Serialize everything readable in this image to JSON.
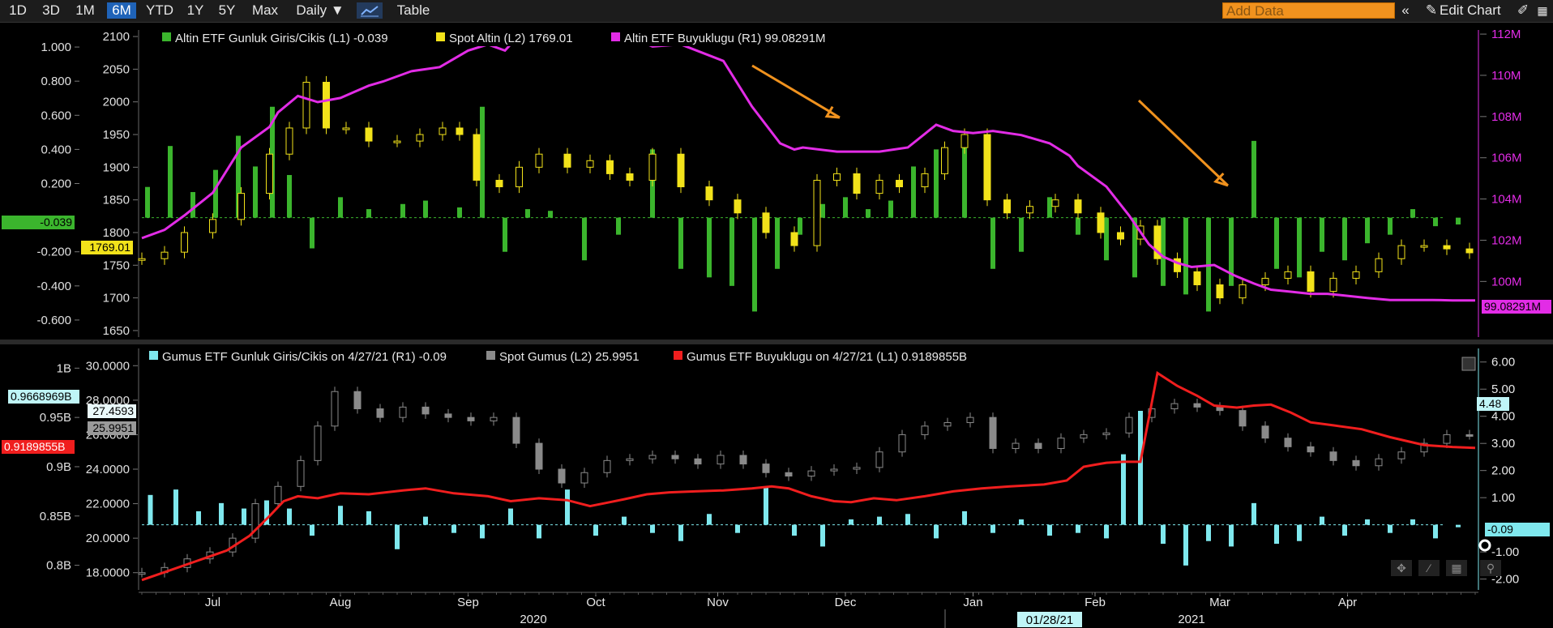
{
  "toolbar": {
    "ranges": [
      "1D",
      "3D",
      "1M",
      "6M",
      "YTD",
      "1Y",
      "5Y",
      "Max"
    ],
    "active_range": "6M",
    "interval": "Daily ▼",
    "table_label": "Table",
    "add_data_placeholder": "Add Data",
    "collapse_icon": "«",
    "edit_chart_label": "Edit Chart",
    "pencil_icon": "✎",
    "right_icon": "✐"
  },
  "colors": {
    "green": "#3bb52d",
    "yellow": "#f2e21a",
    "magenta": "#e22ce6",
    "cyan": "#7fe8ee",
    "gray": "#8a8a8a",
    "red": "#f01e1e",
    "orange": "#f0921e"
  },
  "chart_data": [
    {
      "type": "line",
      "title": "",
      "legend_placement": "top-left",
      "legend": [
        {
          "text": "Altin ETF Gunluk Giris/Cikis (L1) -0.039",
          "color": "#3bb52d"
        },
        {
          "text": "Spot Altin (L2) 1769.01",
          "color": "#f2e21a"
        },
        {
          "text": "Altin ETF Buyuklugu (R1) 99.08291M",
          "color": "#e22ce6"
        }
      ],
      "axes": {
        "L1": {
          "ticks": [
            "1.000",
            "0.800",
            "0.600",
            "0.400",
            "0.200",
            "-0.200",
            "-0.400",
            "-0.600"
          ],
          "range": [
            -0.7,
            1.1
          ]
        },
        "L2": {
          "ticks": [
            "2100",
            "2050",
            "2000",
            "1950",
            "1900",
            "1850",
            "1800",
            "1750",
            "1700",
            "1650"
          ],
          "range": [
            1640,
            2110
          ]
        },
        "R1": {
          "ticks": [
            "112M",
            "110M",
            "108M",
            "106M",
            "104M",
            "102M",
            "100M"
          ],
          "range": [
            97.3,
            112.2
          ]
        }
      },
      "last_value_tags": {
        "L1": "-0.039",
        "L2": "1769.01",
        "R1": "99.08291M"
      },
      "series": [
        {
          "name": "Altin ETF Buyuklugu",
          "axis": "R1",
          "style": "line",
          "color": "#e22ce6",
          "x": [
            0,
            8,
            15,
            25,
            35,
            45,
            48,
            55,
            62,
            70,
            75,
            80,
            85,
            95,
            105,
            115,
            122,
            128,
            132,
            140,
            150,
            158,
            163,
            168,
            175,
            180,
            190,
            205,
            215,
            225,
            230,
            233,
            245,
            260,
            270,
            280,
            286,
            293,
            300,
            310,
            320,
            327,
            330,
            340,
            348,
            355,
            360,
            365,
            370,
            378,
            385,
            392,
            398,
            405,
            412,
            418,
            425,
            432,
            440,
            448,
            455,
            462,
            470
          ],
          "y": [
            102.1,
            102.5,
            103.2,
            104.3,
            106.5,
            107.5,
            108.2,
            109.0,
            108.7,
            108.9,
            109.2,
            109.5,
            109.7,
            110.2,
            110.4,
            111.2,
            111.5,
            111.2,
            111.8,
            112.0,
            112.1,
            112.0,
            111.9,
            111.8,
            111.7,
            111.4,
            111.5,
            110.7,
            108.5,
            106.7,
            106.4,
            106.5,
            106.3,
            106.3,
            106.5,
            107.6,
            107.3,
            107.2,
            107.3,
            107.1,
            106.7,
            106.1,
            105.6,
            104.6,
            103.2,
            101.8,
            101.2,
            100.9,
            100.7,
            100.8,
            100.3,
            99.9,
            99.6,
            99.5,
            99.4,
            99.4,
            99.3,
            99.2,
            99.1,
            99.1,
            99.1,
            99.08,
            99.08
          ]
        },
        {
          "name": "Spot Altin",
          "axis": "L2",
          "style": "candlestick",
          "color": "#f2e21a",
          "x": [
            0,
            8,
            15,
            25,
            35,
            45,
            52,
            58,
            65,
            72,
            80,
            90,
            98,
            106,
            112,
            118,
            126,
            133,
            140,
            150,
            158,
            165,
            172,
            180,
            190,
            200,
            210,
            220,
            230,
            238,
            245,
            252,
            260,
            267,
            276,
            283,
            290,
            298,
            305,
            313,
            322,
            330,
            338,
            345,
            352,
            358,
            365,
            372,
            380,
            388,
            396,
            404,
            412,
            420,
            428,
            436,
            444,
            452,
            460,
            468
          ],
          "y": [
            1760,
            1770,
            1800,
            1820,
            1860,
            1920,
            1960,
            2030,
            1960,
            1960,
            1940,
            1940,
            1950,
            1960,
            1950,
            1880,
            1870,
            1900,
            1920,
            1900,
            1910,
            1890,
            1880,
            1920,
            1870,
            1850,
            1830,
            1800,
            1780,
            1880,
            1890,
            1860,
            1880,
            1870,
            1890,
            1930,
            1950,
            1850,
            1830,
            1840,
            1850,
            1830,
            1800,
            1790,
            1810,
            1760,
            1740,
            1720,
            1700,
            1720,
            1730,
            1740,
            1710,
            1730,
            1740,
            1760,
            1780,
            1780,
            1775,
            1769
          ]
        },
        {
          "name": "Altin ETF Gunluk Giris/Cikis",
          "axis": "L1",
          "style": "bar",
          "color": "#3bb52d",
          "x": [
            2,
            10,
            18,
            26,
            34,
            40,
            46,
            52,
            60,
            70,
            80,
            92,
            100,
            112,
            120,
            128,
            136,
            144,
            156,
            168,
            180,
            190,
            200,
            208,
            216,
            224,
            232,
            240,
            248,
            256,
            264,
            272,
            280,
            290,
            300,
            310,
            320,
            330,
            340,
            350,
            360,
            368,
            376,
            384,
            392,
            400,
            408,
            416,
            424,
            432,
            440,
            448,
            456,
            464
          ],
          "y": [
            0.18,
            0.42,
            0.15,
            0.28,
            0.48,
            0.3,
            0.65,
            0.25,
            -0.18,
            0.12,
            0.05,
            0.08,
            0.1,
            0.06,
            0.65,
            -0.2,
            0.05,
            0.04,
            -0.25,
            -0.1,
            0.4,
            -0.3,
            -0.35,
            -0.4,
            -0.55,
            -0.3,
            -0.1,
            0.08,
            0.12,
            0.05,
            0.1,
            0.3,
            0.4,
            0.42,
            -0.3,
            -0.2,
            0.12,
            -0.1,
            -0.25,
            -0.35,
            -0.4,
            -0.45,
            -0.55,
            -0.4,
            0.45,
            -0.3,
            -0.35,
            -0.2,
            -0.25,
            -0.15,
            -0.1,
            0.05,
            -0.05,
            -0.04
          ]
        }
      ],
      "x_domain": [
        0,
        470
      ]
    },
    {
      "type": "line",
      "title": "",
      "legend_placement": "top-left",
      "legend": [
        {
          "text": "Gumus ETF Gunluk Giris/Cikis on 4/27/21 (R1) -0.09",
          "color": "#7fe8ee"
        },
        {
          "text": "Spot Gumus (L2) 25.9951",
          "color": "#8a8a8a"
        },
        {
          "text": "Gumus ETF Buyuklugu on 4/27/21 (L1) 0.9189855B",
          "color": "#f01e1e"
        }
      ],
      "axes": {
        "L1": {
          "ticks": [
            "1B",
            "0.95B",
            "0.9B",
            "0.85B",
            "0.8B"
          ],
          "range": [
            0.775,
            1.02
          ]
        },
        "L2": {
          "ticks": [
            "30.0000",
            "28.0000",
            "26.0000",
            "24.0000",
            "22.0000",
            "20.0000",
            "18.0000"
          ],
          "range": [
            17.0,
            31.0
          ]
        },
        "R1": {
          "ticks": [
            "6.00",
            "5.00",
            "4.00",
            "3.00",
            "2.00",
            "1.00",
            "-1.00",
            "-2.00"
          ],
          "range": [
            -2.4,
            6.5
          ]
        }
      },
      "last_value_tags": {
        "L1_a": "0.9668969B",
        "L1_b": "0.9189855B",
        "L2_a": "27.4593",
        "L2_b": "25.9951",
        "R1_a": "4.48",
        "R1_b": "-0.09"
      },
      "series": [
        {
          "name": "Gumus ETF Buyuklugu",
          "axis": "L1",
          "style": "line",
          "color": "#f01e1e",
          "x": [
            0,
            10,
            20,
            30,
            38,
            45,
            50,
            55,
            62,
            70,
            80,
            92,
            100,
            110,
            122,
            130,
            140,
            150,
            158,
            165,
            170,
            178,
            186,
            195,
            205,
            215,
            222,
            228,
            236,
            244,
            250,
            258,
            266,
            276,
            286,
            296,
            306,
            318,
            326,
            332,
            336,
            340,
            346,
            352,
            358,
            365,
            372,
            378,
            386,
            392,
            398,
            405,
            412,
            420,
            430,
            440,
            452,
            462,
            470
          ],
          "y": [
            0.785,
            0.795,
            0.805,
            0.815,
            0.83,
            0.85,
            0.865,
            0.87,
            0.868,
            0.873,
            0.872,
            0.876,
            0.878,
            0.873,
            0.87,
            0.865,
            0.868,
            0.866,
            0.86,
            0.864,
            0.867,
            0.872,
            0.874,
            0.875,
            0.876,
            0.878,
            0.88,
            0.878,
            0.87,
            0.865,
            0.864,
            0.868,
            0.866,
            0.87,
            0.875,
            0.878,
            0.88,
            0.882,
            0.886,
            0.9,
            0.902,
            0.904,
            0.905,
            0.905,
            0.995,
            0.982,
            0.972,
            0.962,
            0.96,
            0.962,
            0.963,
            0.955,
            0.945,
            0.942,
            0.938,
            0.93,
            0.922,
            0.92,
            0.919
          ]
        },
        {
          "name": "Spot Gumus",
          "axis": "L2",
          "style": "candlestick",
          "color": "#8a8a8a",
          "x": [
            0,
            8,
            16,
            24,
            32,
            40,
            48,
            56,
            62,
            68,
            76,
            84,
            92,
            100,
            108,
            116,
            124,
            132,
            140,
            148,
            156,
            164,
            172,
            180,
            188,
            196,
            204,
            212,
            220,
            228,
            236,
            244,
            252,
            260,
            268,
            276,
            284,
            292,
            300,
            308,
            316,
            324,
            332,
            340,
            348,
            356,
            364,
            372,
            380,
            388,
            396,
            404,
            412,
            420,
            428,
            436,
            444,
            452,
            460,
            468
          ],
          "y": [
            18.0,
            18.3,
            18.8,
            19.2,
            20.0,
            22.0,
            23.0,
            24.5,
            26.5,
            28.5,
            27.5,
            27.0,
            27.6,
            27.2,
            27.0,
            26.8,
            27.0,
            25.5,
            24.0,
            23.2,
            23.8,
            24.5,
            24.6,
            24.8,
            24.6,
            24.3,
            24.8,
            24.3,
            23.8,
            23.6,
            23.9,
            24.0,
            24.1,
            25.0,
            26.0,
            26.5,
            26.7,
            27.0,
            25.2,
            25.5,
            25.2,
            25.8,
            26.0,
            26.1,
            27.0,
            27.5,
            27.8,
            27.6,
            27.4,
            26.5,
            25.8,
            25.3,
            25.0,
            24.5,
            24.2,
            24.6,
            25.0,
            25.5,
            26.0,
            25.9951
          ]
        },
        {
          "name": "Gumus ETF Gunluk Giris/Cikis",
          "axis": "R1",
          "style": "bar",
          "color": "#7fe8ee",
          "x": [
            3,
            12,
            20,
            28,
            36,
            44,
            52,
            60,
            70,
            80,
            90,
            100,
            110,
            120,
            130,
            140,
            150,
            160,
            170,
            180,
            190,
            200,
            210,
            220,
            230,
            240,
            250,
            260,
            270,
            280,
            290,
            300,
            310,
            320,
            330,
            340,
            346,
            352,
            360,
            368,
            376,
            384,
            392,
            400,
            408,
            416,
            424,
            432,
            440,
            448,
            456,
            464
          ],
          "y": [
            1.1,
            1.3,
            0.5,
            0.8,
            0.6,
            0.9,
            0.6,
            -0.4,
            0.7,
            0.5,
            -0.9,
            0.3,
            -0.3,
            -0.5,
            0.6,
            -0.5,
            1.3,
            -0.4,
            0.3,
            -0.3,
            -0.6,
            0.4,
            -0.3,
            1.4,
            -0.4,
            -0.8,
            0.2,
            0.3,
            0.4,
            -0.5,
            0.5,
            -0.3,
            0.2,
            -0.4,
            -0.3,
            -0.5,
            2.6,
            4.2,
            -0.7,
            -1.5,
            -0.6,
            -0.8,
            0.8,
            -0.7,
            -0.6,
            0.3,
            -0.4,
            0.2,
            -0.3,
            0.2,
            -0.5,
            -0.09
          ]
        }
      ],
      "x_domain": [
        0,
        470
      ]
    }
  ],
  "annotations": {
    "arrow_color": "#f0921e"
  },
  "x_axis": {
    "months": [
      {
        "label": "Jul",
        "x": 25
      },
      {
        "label": "Aug",
        "x": 70
      },
      {
        "label": "Sep",
        "x": 115
      },
      {
        "label": "Oct",
        "x": 160
      },
      {
        "label": "Nov",
        "x": 203
      },
      {
        "label": "Dec",
        "x": 248
      },
      {
        "label": "Jan",
        "x": 293
      },
      {
        "label": "Feb",
        "x": 336
      },
      {
        "label": "Mar",
        "x": 380
      },
      {
        "label": "Apr",
        "x": 425
      }
    ],
    "years": [
      {
        "label": "2020",
        "x": 138
      },
      {
        "label": "2021",
        "x": 370
      }
    ],
    "crosshair_date": "01/28/21",
    "crosshair_x": 320
  }
}
